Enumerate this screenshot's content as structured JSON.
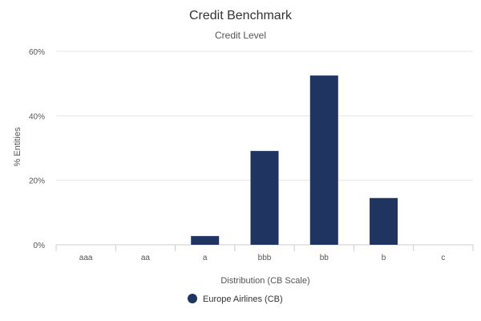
{
  "chart_data": {
    "type": "bar",
    "title": "Credit Benchmark",
    "subtitle": "Credit Level",
    "xlabel": "Distribution (CB Scale)",
    "ylabel": "% Entities",
    "categories": [
      "aaa",
      "aa",
      "a",
      "bbb",
      "bb",
      "b",
      "c"
    ],
    "ylim": [
      0,
      60
    ],
    "yticks": [
      "0%",
      "20%",
      "40%",
      "60%"
    ],
    "ytick_values": [
      0,
      20,
      40,
      60
    ],
    "grid": true,
    "legend_position": "bottom",
    "series": [
      {
        "name": "Europe Airlines (CB)",
        "color": "#1f3460",
        "values": [
          0,
          0,
          2.7,
          29.1,
          52.5,
          14.5,
          0
        ]
      }
    ]
  }
}
